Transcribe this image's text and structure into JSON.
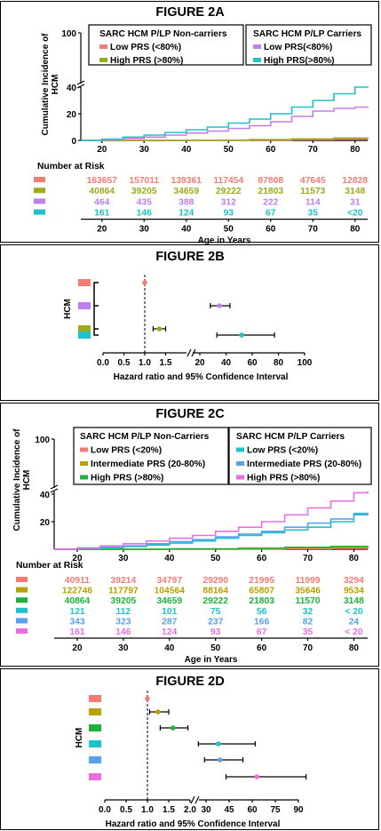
{
  "colors": {
    "salmon": "#f47c74",
    "olive": "#9caa1e",
    "lavender": "#c07ef0",
    "teal": "#1ec2c8",
    "gold": "#b8a100",
    "green": "#1cb33c",
    "blue": "#56a2ee",
    "pink": "#ea6ee0"
  },
  "chart_data": [
    {
      "id": "2A",
      "type": "line",
      "title": "FIGURE 2A",
      "ylabel": "Cumulative Incidence of HCM",
      "xlabel": "Age in Years",
      "x_ticks": [
        20,
        30,
        40,
        50,
        60,
        70,
        80
      ],
      "y_ticks_upper": [
        100
      ],
      "y_ticks_lower": [
        0,
        20,
        40
      ],
      "ylim": [
        0,
        100
      ],
      "legend_groups": [
        {
          "title": "SARC HCM P/LP Non-carriers",
          "items": [
            "Low PRS (<80%)",
            "High PRS (>80%)"
          ]
        },
        {
          "title": "SARC HCM P/LP Carriers",
          "items": [
            "Low PRS(<80%)",
            "High PRS(>80%)"
          ]
        }
      ],
      "series": [
        {
          "color_key": "salmon",
          "x": [
            15,
            40,
            55,
            65,
            75,
            83
          ],
          "y": [
            0,
            0.1,
            0.3,
            0.6,
            1.0,
            1.2
          ]
        },
        {
          "color_key": "olive",
          "x": [
            15,
            40,
            55,
            65,
            75,
            83
          ],
          "y": [
            0,
            0.2,
            0.6,
            1.1,
            1.8,
            2.1
          ]
        },
        {
          "color_key": "lavender",
          "x": [
            15,
            20,
            25,
            30,
            35,
            40,
            45,
            50,
            55,
            60,
            65,
            70,
            75,
            80,
            83
          ],
          "y": [
            0,
            0.5,
            1.5,
            2.5,
            4,
            5.5,
            7,
            9,
            11,
            14,
            18,
            22,
            24,
            25,
            25.5
          ]
        },
        {
          "color_key": "teal",
          "x": [
            15,
            20,
            25,
            30,
            35,
            40,
            45,
            50,
            55,
            60,
            65,
            70,
            75,
            80,
            83
          ],
          "y": [
            0,
            1,
            2.5,
            4,
            6,
            8,
            10,
            13,
            16,
            20,
            25,
            30,
            35,
            40,
            40.5
          ]
        }
      ],
      "risk_label": "Number at Risk",
      "risk_rows": [
        {
          "color_key": "salmon",
          "values": [
            "163657",
            "157011",
            "139361",
            "117454",
            "87808",
            "47645",
            "12828"
          ]
        },
        {
          "color_key": "olive",
          "values": [
            "40864",
            "39205",
            "34659",
            "29222",
            "21803",
            "11573",
            "3148"
          ]
        },
        {
          "color_key": "lavender",
          "values": [
            "464",
            "435",
            "388",
            "312",
            "222",
            "114",
            "31"
          ]
        },
        {
          "color_key": "teal",
          "values": [
            "161",
            "146",
            "124",
            "93",
            "67",
            "35",
            "<20"
          ]
        }
      ]
    },
    {
      "id": "2B",
      "type": "scatter",
      "title": "FIGURE 2B",
      "ylabel": "HCM",
      "xlabel": "Hazard ratio and 95% Confidence Interval",
      "x_ticks": [
        "0.0",
        "0.5",
        "1.0",
        "1.5",
        "20",
        "40",
        "60",
        "80",
        "100"
      ],
      "points": [
        {
          "color_key": "salmon",
          "hr": 1.0,
          "lo": 1.0,
          "hi": 1.0
        },
        {
          "color_key": "lavender",
          "hr": 35,
          "lo": 28,
          "hi": 43
        },
        {
          "color_key": "olive",
          "hr": 1.35,
          "lo": 1.2,
          "hi": 1.5
        },
        {
          "color_key": "teal",
          "hr": 52,
          "lo": 33,
          "hi": 77
        }
      ]
    },
    {
      "id": "2C",
      "type": "line",
      "title": "FIGURE 2C",
      "ylabel": "Cumulative Incidence of HCM",
      "xlabel": "Age in Years",
      "x_ticks": [
        20,
        30,
        40,
        50,
        60,
        70,
        80
      ],
      "y_ticks_upper": [
        100
      ],
      "y_ticks_lower": [
        20,
        40
      ],
      "ylim": [
        0,
        100
      ],
      "legend_groups": [
        {
          "title": "SARC HCM P/LP Non-Carriers",
          "items": [
            "Low PRS (<20%)",
            "Intermediate PRS (20-80%)",
            "High PRS (>80%)"
          ]
        },
        {
          "title": "SARC HCM P/LP Carriers",
          "items": [
            "Low PRS (<20%)",
            "Intermediate PRS (20-80%)",
            "High PRS (>80%)"
          ]
        }
      ],
      "series": [
        {
          "color_key": "salmon",
          "x": [
            15,
            40,
            55,
            65,
            75,
            83
          ],
          "y": [
            0,
            0.1,
            0.2,
            0.4,
            0.7,
            0.9
          ]
        },
        {
          "color_key": "gold",
          "x": [
            15,
            40,
            55,
            65,
            75,
            83
          ],
          "y": [
            0,
            0.2,
            0.5,
            0.9,
            1.4,
            1.7
          ]
        },
        {
          "color_key": "green",
          "x": [
            15,
            40,
            55,
            65,
            75,
            83
          ],
          "y": [
            0,
            0.3,
            0.8,
            1.4,
            2.1,
            2.5
          ]
        },
        {
          "color_key": "teal",
          "x": [
            15,
            20,
            25,
            30,
            35,
            40,
            45,
            50,
            55,
            60,
            65,
            70,
            75,
            80,
            83
          ],
          "y": [
            0,
            0.5,
            1,
            2,
            3,
            4.5,
            6,
            8,
            10,
            12,
            14,
            16,
            20,
            26,
            26
          ]
        },
        {
          "color_key": "blue",
          "x": [
            15,
            20,
            25,
            30,
            35,
            40,
            45,
            50,
            55,
            60,
            65,
            70,
            75,
            80,
            83
          ],
          "y": [
            0,
            0.5,
            1.5,
            2.5,
            4,
            5.5,
            7,
            9,
            11,
            13,
            16,
            19,
            22,
            25,
            26.5
          ]
        },
        {
          "color_key": "pink",
          "x": [
            15,
            20,
            25,
            30,
            35,
            40,
            45,
            50,
            55,
            60,
            65,
            70,
            75,
            80,
            83
          ],
          "y": [
            0,
            1,
            2.5,
            4,
            6,
            8,
            10,
            13,
            16,
            20,
            25,
            30,
            35,
            41,
            42
          ]
        }
      ],
      "risk_label": "Number at Risk",
      "risk_rows": [
        {
          "color_key": "salmon",
          "values": [
            "40911",
            "39214",
            "34797",
            "29290",
            "21995",
            "11999",
            "3294"
          ]
        },
        {
          "color_key": "gold",
          "values": [
            "122746",
            "117797",
            "104564",
            "88164",
            "65807",
            "35646",
            "9534"
          ]
        },
        {
          "color_key": "green",
          "values": [
            "40864",
            "39205",
            "34659",
            "29222",
            "21803",
            "11570",
            "3148"
          ]
        },
        {
          "color_key": "teal",
          "values": [
            "121",
            "112",
            "101",
            "75",
            "56",
            "32",
            "< 20"
          ]
        },
        {
          "color_key": "blue",
          "values": [
            "343",
            "323",
            "287",
            "237",
            "166",
            "82",
            "24"
          ]
        },
        {
          "color_key": "pink",
          "values": [
            "161",
            "146",
            "124",
            "93",
            "67",
            "35",
            "< 20"
          ]
        }
      ]
    },
    {
      "id": "2D",
      "type": "scatter",
      "title": "FIGURE 2D",
      "ylabel": "HCM",
      "xlabel": "Hazard ratio and 95% Confidence Interval",
      "x_ticks": [
        "0.0",
        "0.5",
        "1.0",
        "1.5",
        "2.0",
        "30",
        "45",
        "60",
        "75",
        "90"
      ],
      "points": [
        {
          "color_key": "salmon",
          "hr": 1.0,
          "lo": 1.0,
          "hi": 1.0
        },
        {
          "color_key": "gold",
          "hr": 1.25,
          "lo": 1.05,
          "hi": 1.5
        },
        {
          "color_key": "green",
          "hr": 1.6,
          "lo": 1.3,
          "hi": 1.95
        },
        {
          "color_key": "teal",
          "hr": 38,
          "lo": 25,
          "hi": 62
        },
        {
          "color_key": "blue",
          "hr": 39,
          "lo": 29,
          "hi": 54
        },
        {
          "color_key": "pink",
          "hr": 63,
          "lo": 43,
          "hi": 95
        }
      ]
    }
  ]
}
